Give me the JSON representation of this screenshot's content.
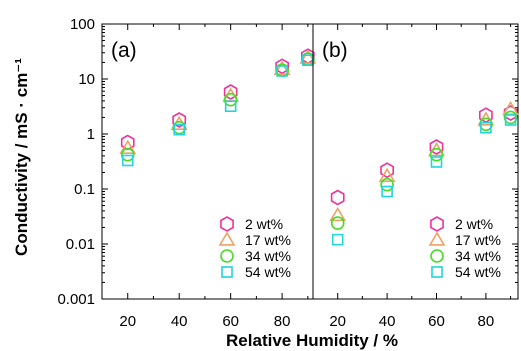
{
  "chart_data": {
    "type": "scatter",
    "xlabel": "Relative Humidity / %",
    "ylabel": "Conductivity / mS · cm⁻¹",
    "x_ticks": [
      20,
      40,
      60,
      80
    ],
    "x_tick_labels": [
      "20",
      "40",
      "60",
      "80"
    ],
    "y_scale": "log",
    "ylim": [
      0.001,
      100
    ],
    "y_ticks": [
      0.001,
      0.01,
      0.1,
      1,
      10,
      100
    ],
    "y_tick_labels": [
      "0.001",
      "0.01",
      "0.1",
      "1",
      "10",
      "100"
    ],
    "grid": false,
    "legend_position": "bottom-right",
    "colors": {
      "2 wt%": "#ee3399",
      "17 wt%": "#eea066",
      "34 wt%": "#44dd22",
      "54 wt%": "#22d4dd"
    },
    "markers": {
      "2 wt%": "hexagon",
      "17 wt%": "triangle",
      "34 wt%": "circle",
      "54 wt%": "square"
    },
    "panels": [
      {
        "label": "(a)",
        "xlim": [
          10,
          92
        ],
        "series": [
          {
            "name": "2 wt%",
            "x": [
              20,
              40,
              60,
              80,
              90
            ],
            "y": [
              0.7,
              1.8,
              5.8,
              17,
              26
            ]
          },
          {
            "name": "17 wt%",
            "x": [
              20,
              40,
              60,
              80,
              90
            ],
            "y": [
              0.55,
              1.5,
              4.9,
              15,
              24
            ]
          },
          {
            "name": "34 wt%",
            "x": [
              20,
              40,
              60,
              80,
              90
            ],
            "y": [
              0.42,
              1.3,
              4.2,
              14.5,
              23
            ]
          },
          {
            "name": "54 wt%",
            "x": [
              20,
              40,
              60,
              80,
              90
            ],
            "y": [
              0.33,
              1.2,
              3.2,
              14,
              22
            ]
          }
        ]
      },
      {
        "label": "(b)",
        "xlim": [
          10,
          93
        ],
        "series": [
          {
            "name": "2 wt%",
            "x": [
              20,
              40,
              60,
              80,
              90
            ],
            "y": [
              0.07,
              0.22,
              0.58,
              2.2,
              2.4
            ]
          },
          {
            "name": "17 wt%",
            "x": [
              20,
              40,
              60,
              80,
              90
            ],
            "y": [
              0.033,
              0.17,
              0.5,
              1.8,
              2.8
            ]
          },
          {
            "name": "34 wt%",
            "x": [
              20,
              40,
              60,
              80,
              90
            ],
            "y": [
              0.024,
              0.12,
              0.42,
              1.5,
              2.0
            ]
          },
          {
            "name": "54 wt%",
            "x": [
              20,
              40,
              60,
              80,
              90
            ],
            "y": [
              0.012,
              0.09,
              0.31,
              1.3,
              1.8
            ]
          }
        ]
      }
    ]
  }
}
